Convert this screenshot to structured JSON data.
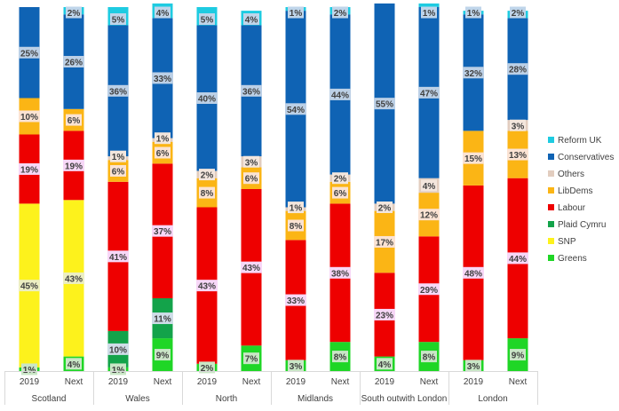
{
  "chart_data": {
    "type": "bar",
    "stacked": true,
    "normalized_percent": true,
    "ylim": [
      0,
      100
    ],
    "grid": false,
    "legend_position": "right",
    "groups": [
      "Scotland",
      "Wales",
      "North",
      "Midlands",
      "South outwith London",
      "London"
    ],
    "periods": [
      "2019",
      "Next"
    ],
    "bars": [
      {
        "group": "Scotland",
        "period": "2019",
        "values": {
          "Greens": 1,
          "SNP": 45,
          "Plaid Cymru": 0,
          "Labour": 19,
          "LibDems": 10,
          "Others": 0,
          "Conservatives": 25,
          "Reform UK": 0
        }
      },
      {
        "group": "Scotland",
        "period": "Next",
        "values": {
          "Greens": 4,
          "SNP": 43,
          "Plaid Cymru": 0,
          "Labour": 19,
          "LibDems": 6,
          "Others": 0,
          "Conservatives": 26,
          "Reform UK": 2
        }
      },
      {
        "group": "Wales",
        "period": "2019",
        "values": {
          "Greens": 1,
          "SNP": 0,
          "Plaid Cymru": 10,
          "Labour": 41,
          "LibDems": 6,
          "Others": 1,
          "Conservatives": 36,
          "Reform UK": 5
        }
      },
      {
        "group": "Wales",
        "period": "Next",
        "values": {
          "Greens": 9,
          "SNP": 0,
          "Plaid Cymru": 11,
          "Labour": 37,
          "LibDems": 6,
          "Others": 1,
          "Conservatives": 33,
          "Reform UK": 4
        }
      },
      {
        "group": "North",
        "period": "2019",
        "values": {
          "Greens": 2,
          "SNP": 0,
          "Plaid Cymru": 0,
          "Labour": 43,
          "LibDems": 8,
          "Others": 2,
          "Conservatives": 40,
          "Reform UK": 5
        }
      },
      {
        "group": "North",
        "period": "Next",
        "values": {
          "Greens": 7,
          "SNP": 0,
          "Plaid Cymru": 0,
          "Labour": 43,
          "LibDems": 6,
          "Others": 3,
          "Conservatives": 36,
          "Reform UK": 4
        }
      },
      {
        "group": "Midlands",
        "period": "2019",
        "values": {
          "Greens": 3,
          "SNP": 0,
          "Plaid Cymru": 0,
          "Labour": 33,
          "LibDems": 8,
          "Others": 1,
          "Conservatives": 54,
          "Reform UK": 1
        }
      },
      {
        "group": "Midlands",
        "period": "Next",
        "values": {
          "Greens": 8,
          "SNP": 0,
          "Plaid Cymru": 0,
          "Labour": 38,
          "LibDems": 6,
          "Others": 2,
          "Conservatives": 44,
          "Reform UK": 2
        }
      },
      {
        "group": "South outwith London",
        "period": "2019",
        "values": {
          "Greens": 4,
          "SNP": 0,
          "Plaid Cymru": 0,
          "Labour": 23,
          "LibDems": 17,
          "Others": 2,
          "Conservatives": 55,
          "Reform UK": 0
        }
      },
      {
        "group": "South outwith London",
        "period": "Next",
        "values": {
          "Greens": 8,
          "SNP": 0,
          "Plaid Cymru": 0,
          "Labour": 29,
          "LibDems": 12,
          "Others": 4,
          "Conservatives": 47,
          "Reform UK": 1
        }
      },
      {
        "group": "London",
        "period": "2019",
        "values": {
          "Greens": 3,
          "SNP": 0,
          "Plaid Cymru": 0,
          "Labour": 48,
          "LibDems": 15,
          "Others": 0,
          "Conservatives": 32,
          "Reform UK": 1
        }
      },
      {
        "group": "London",
        "period": "Next",
        "values": {
          "Greens": 9,
          "SNP": 0,
          "Plaid Cymru": 0,
          "Labour": 44,
          "LibDems": 13,
          "Others": 3,
          "Conservatives": 28,
          "Reform UK": 2
        }
      }
    ],
    "stack_order": [
      "Greens",
      "SNP",
      "Plaid Cymru",
      "Labour",
      "LibDems",
      "Others",
      "Conservatives",
      "Reform UK"
    ],
    "legend": [
      "Reform UK",
      "Conservatives",
      "Others",
      "LibDems",
      "Labour",
      "Plaid Cymru",
      "SNP",
      "Greens"
    ],
    "colors": {
      "Reform UK": "#1ecbe1",
      "Conservatives": "#0f63b4",
      "Others": "#e2cdbf",
      "LibDems": "#fbb515",
      "Labour": "#ee0000",
      "Plaid Cymru": "#13a34a",
      "SNP": "#fdf21c",
      "Greens": "#1fd626"
    },
    "label_backgrounds": {
      "Reform UK": "#bfd5ea",
      "Conservatives": "#bcd0e6",
      "Others": "#f3e6dd",
      "LibDems": "#fbe3d3",
      "Labour": "#f7d7f7",
      "Plaid Cymru": "#cfdde8",
      "SNP": "#eceec2",
      "Greens": "#c9e6c6"
    },
    "data_labels": [
      {
        "bar": 0,
        "party": "Conservatives",
        "text": "25%"
      },
      {
        "bar": 0,
        "party": "LibDems",
        "text": "10%"
      },
      {
        "bar": 0,
        "party": "Labour",
        "text": "19%"
      },
      {
        "bar": 0,
        "party": "SNP",
        "text": "45%"
      },
      {
        "bar": 0,
        "party": "Greens",
        "text": "1%"
      },
      {
        "bar": 1,
        "party": "Reform UK",
        "text": "2%"
      },
      {
        "bar": 1,
        "party": "Conservatives",
        "text": "26%"
      },
      {
        "bar": 1,
        "party": "LibDems",
        "text": "6%"
      },
      {
        "bar": 1,
        "party": "Labour",
        "text": "19%"
      },
      {
        "bar": 1,
        "party": "SNP",
        "text": "43%"
      },
      {
        "bar": 1,
        "party": "Greens",
        "text": "4%"
      },
      {
        "bar": 2,
        "party": "Reform UK",
        "text": "5%"
      },
      {
        "bar": 2,
        "party": "Conservatives",
        "text": "36%"
      },
      {
        "bar": 2,
        "party": "Others",
        "text": "1%"
      },
      {
        "bar": 2,
        "party": "LibDems",
        "text": "6%"
      },
      {
        "bar": 2,
        "party": "Labour",
        "text": "41%"
      },
      {
        "bar": 2,
        "party": "Plaid Cymru",
        "text": "10%"
      },
      {
        "bar": 2,
        "party": "Greens",
        "text": "1%"
      },
      {
        "bar": 3,
        "party": "Reform UK",
        "text": "4%"
      },
      {
        "bar": 3,
        "party": "Conservatives",
        "text": "33%"
      },
      {
        "bar": 3,
        "party": "Others",
        "text": "1%"
      },
      {
        "bar": 3,
        "party": "LibDems",
        "text": "6%"
      },
      {
        "bar": 3,
        "party": "Labour",
        "text": "37%"
      },
      {
        "bar": 3,
        "party": "Plaid Cymru",
        "text": "11%"
      },
      {
        "bar": 3,
        "party": "Greens",
        "text": "9%"
      },
      {
        "bar": 4,
        "party": "Reform UK",
        "text": "5%"
      },
      {
        "bar": 4,
        "party": "Conservatives",
        "text": "40%"
      },
      {
        "bar": 4,
        "party": "Others",
        "text": "2%"
      },
      {
        "bar": 4,
        "party": "LibDems",
        "text": "8%"
      },
      {
        "bar": 4,
        "party": "Labour",
        "text": "43%"
      },
      {
        "bar": 4,
        "party": "Greens",
        "text": "2%"
      },
      {
        "bar": 5,
        "party": "Reform UK",
        "text": "4%"
      },
      {
        "bar": 5,
        "party": "Conservatives",
        "text": "36%"
      },
      {
        "bar": 5,
        "party": "Others",
        "text": "3%"
      },
      {
        "bar": 5,
        "party": "LibDems",
        "text": "6%"
      },
      {
        "bar": 5,
        "party": "Labour",
        "text": "43%"
      },
      {
        "bar": 5,
        "party": "Greens",
        "text": "7%"
      },
      {
        "bar": 6,
        "party": "Reform UK",
        "text": "1%"
      },
      {
        "bar": 6,
        "party": "Conservatives",
        "text": "54%"
      },
      {
        "bar": 6,
        "party": "Others",
        "text": "1%"
      },
      {
        "bar": 6,
        "party": "LibDems",
        "text": "8%"
      },
      {
        "bar": 6,
        "party": "Labour",
        "text": "33%"
      },
      {
        "bar": 6,
        "party": "Greens",
        "text": "3%"
      },
      {
        "bar": 7,
        "party": "Reform UK",
        "text": "2%"
      },
      {
        "bar": 7,
        "party": "Conservatives",
        "text": "44%"
      },
      {
        "bar": 7,
        "party": "Others",
        "text": "2%"
      },
      {
        "bar": 7,
        "party": "LibDems",
        "text": "6%"
      },
      {
        "bar": 7,
        "party": "Labour",
        "text": "38%"
      },
      {
        "bar": 7,
        "party": "Greens",
        "text": "8%"
      },
      {
        "bar": 8,
        "party": "Conservatives",
        "text": "55%"
      },
      {
        "bar": 8,
        "party": "Others",
        "text": "2%"
      },
      {
        "bar": 8,
        "party": "LibDems",
        "text": "17%"
      },
      {
        "bar": 8,
        "party": "Labour",
        "text": "23%"
      },
      {
        "bar": 8,
        "party": "Greens",
        "text": "4%"
      },
      {
        "bar": 9,
        "party": "Reform UK",
        "text": "1%"
      },
      {
        "bar": 9,
        "party": "Conservatives",
        "text": "47%"
      },
      {
        "bar": 9,
        "party": "Others",
        "text": "4%"
      },
      {
        "bar": 9,
        "party": "LibDems",
        "text": "12%"
      },
      {
        "bar": 9,
        "party": "Labour",
        "text": "29%"
      },
      {
        "bar": 9,
        "party": "Greens",
        "text": "8%"
      },
      {
        "bar": 10,
        "party": "Reform UK",
        "text": "1%"
      },
      {
        "bar": 10,
        "party": "Conservatives",
        "text": "32%"
      },
      {
        "bar": 10,
        "party": "LibDems",
        "text": "15%"
      },
      {
        "bar": 10,
        "party": "Labour",
        "text": "48%"
      },
      {
        "bar": 10,
        "party": "Greens",
        "text": "3%"
      },
      {
        "bar": 11,
        "party": "Reform UK",
        "text": "2%"
      },
      {
        "bar": 11,
        "party": "Conservatives",
        "text": "28%"
      },
      {
        "bar": 11,
        "party": "Others",
        "text": "3%"
      },
      {
        "bar": 11,
        "party": "LibDems",
        "text": "13%"
      },
      {
        "bar": 11,
        "party": "Labour",
        "text": "44%"
      },
      {
        "bar": 11,
        "party": "Greens",
        "text": "9%"
      }
    ]
  }
}
